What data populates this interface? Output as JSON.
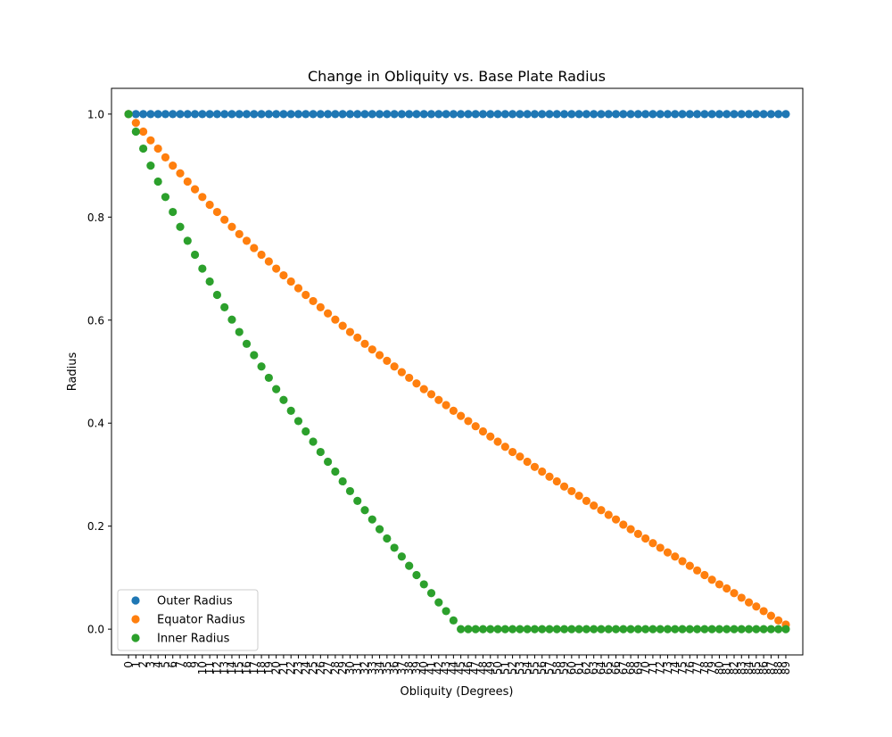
{
  "chart_data": {
    "type": "scatter",
    "title": "Change in Obliquity vs. Base Plate Radius",
    "xlabel": "Obliquity (Degrees)",
    "ylabel": "Radius",
    "xlim": [
      -2.3,
      91.3
    ],
    "ylim": [
      -0.05,
      1.05
    ],
    "x": [
      0,
      1,
      2,
      3,
      4,
      5,
      6,
      7,
      8,
      9,
      10,
      11,
      12,
      13,
      14,
      15,
      16,
      17,
      18,
      19,
      20,
      21,
      22,
      23,
      24,
      25,
      26,
      27,
      28,
      29,
      30,
      31,
      32,
      33,
      34,
      35,
      36,
      37,
      38,
      39,
      40,
      41,
      42,
      43,
      44,
      45,
      46,
      47,
      48,
      49,
      50,
      51,
      52,
      53,
      54,
      55,
      56,
      57,
      58,
      59,
      60,
      61,
      62,
      63,
      64,
      65,
      66,
      67,
      68,
      69,
      70,
      71,
      72,
      73,
      74,
      75,
      76,
      77,
      78,
      79,
      80,
      81,
      82,
      83,
      84,
      85,
      86,
      87,
      88,
      89
    ],
    "x_tick_labels": [
      "0",
      "1",
      "2",
      "3",
      "4",
      "5",
      "6",
      "7",
      "8",
      "9",
      "10",
      "11",
      "12",
      "13",
      "14",
      "15",
      "16",
      "17",
      "18",
      "19",
      "20",
      "21",
      "22",
      "23",
      "24",
      "25",
      "26",
      "27",
      "28",
      "29",
      "30",
      "31",
      "32",
      "33",
      "34",
      "35",
      "36",
      "37",
      "38",
      "39",
      "40",
      "41",
      "42",
      "43",
      "44",
      "45",
      "46",
      "47",
      "48",
      "49",
      "50",
      "51",
      "52",
      "53",
      "54",
      "55",
      "56",
      "57",
      "58",
      "59",
      "60",
      "61",
      "62",
      "63",
      "64",
      "65",
      "66",
      "67",
      "68",
      "69",
      "70",
      "71",
      "72",
      "73",
      "74",
      "75",
      "76",
      "77",
      "78",
      "79",
      "80",
      "81",
      "82",
      "83",
      "84",
      "85",
      "86",
      "87",
      "88",
      "89"
    ],
    "y_ticks": [
      0.0,
      0.2,
      0.4,
      0.6,
      0.8,
      1.0
    ],
    "y_tick_labels": [
      "0.0",
      "0.2",
      "0.4",
      "0.6",
      "0.8",
      "1.0"
    ],
    "legend_position": "lower-left",
    "grid": false,
    "series": [
      {
        "name": "Outer Radius",
        "color": "#1f77b4",
        "values": [
          1,
          1,
          1,
          1,
          1,
          1,
          1,
          1,
          1,
          1,
          1,
          1,
          1,
          1,
          1,
          1,
          1,
          1,
          1,
          1,
          1,
          1,
          1,
          1,
          1,
          1,
          1,
          1,
          1,
          1,
          1,
          1,
          1,
          1,
          1,
          1,
          1,
          1,
          1,
          1,
          1,
          1,
          1,
          1,
          1,
          1,
          1,
          1,
          1,
          1,
          1,
          1,
          1,
          1,
          1,
          1,
          1,
          1,
          1,
          1,
          1,
          1,
          1,
          1,
          1,
          1,
          1,
          1,
          1,
          1,
          1,
          1,
          1,
          1,
          1,
          1,
          1,
          1,
          1,
          1,
          1,
          1,
          1,
          1,
          1,
          1,
          1,
          1,
          1,
          1
        ]
      },
      {
        "name": "Equator Radius",
        "color": "#ff7f0e",
        "values": [
          1.0,
          0.983,
          0.966,
          0.949,
          0.933,
          0.916,
          0.9,
          0.885,
          0.869,
          0.854,
          0.839,
          0.824,
          0.81,
          0.795,
          0.781,
          0.767,
          0.754,
          0.74,
          0.727,
          0.714,
          0.7,
          0.687,
          0.675,
          0.662,
          0.649,
          0.637,
          0.625,
          0.613,
          0.601,
          0.589,
          0.577,
          0.566,
          0.554,
          0.543,
          0.532,
          0.521,
          0.51,
          0.499,
          0.488,
          0.477,
          0.466,
          0.456,
          0.445,
          0.435,
          0.424,
          0.414,
          0.404,
          0.394,
          0.384,
          0.374,
          0.364,
          0.354,
          0.344,
          0.335,
          0.325,
          0.315,
          0.306,
          0.296,
          0.287,
          0.277,
          0.268,
          0.259,
          0.249,
          0.24,
          0.231,
          0.222,
          0.213,
          0.203,
          0.194,
          0.185,
          0.176,
          0.167,
          0.158,
          0.149,
          0.141,
          0.132,
          0.123,
          0.114,
          0.105,
          0.096,
          0.087,
          0.079,
          0.07,
          0.061,
          0.052,
          0.044,
          0.035,
          0.026,
          0.017,
          0.009
        ]
      },
      {
        "name": "Inner Radius",
        "color": "#2ca02c",
        "values": [
          1.0,
          0.966,
          0.933,
          0.9,
          0.869,
          0.839,
          0.81,
          0.781,
          0.754,
          0.727,
          0.7,
          0.675,
          0.649,
          0.625,
          0.601,
          0.577,
          0.554,
          0.532,
          0.51,
          0.488,
          0.466,
          0.445,
          0.424,
          0.404,
          0.384,
          0.364,
          0.344,
          0.325,
          0.306,
          0.287,
          0.268,
          0.249,
          0.231,
          0.213,
          0.194,
          0.176,
          0.158,
          0.141,
          0.123,
          0.105,
          0.087,
          0.07,
          0.052,
          0.035,
          0.017,
          0.0,
          0.0,
          0.0,
          0.0,
          0.0,
          0.0,
          0.0,
          0.0,
          0.0,
          0.0,
          0.0,
          0.0,
          0.0,
          0.0,
          0.0,
          0.0,
          0.0,
          0.0,
          0.0,
          0.0,
          0.0,
          0.0,
          0.0,
          0.0,
          0.0,
          0.0,
          0.0,
          0.0,
          0.0,
          0.0,
          0.0,
          0.0,
          0.0,
          0.0,
          0.0,
          0.0,
          0.0,
          0.0,
          0.0,
          0.0,
          0.0,
          0.0,
          0.0,
          0.0,
          0.0
        ]
      }
    ]
  }
}
